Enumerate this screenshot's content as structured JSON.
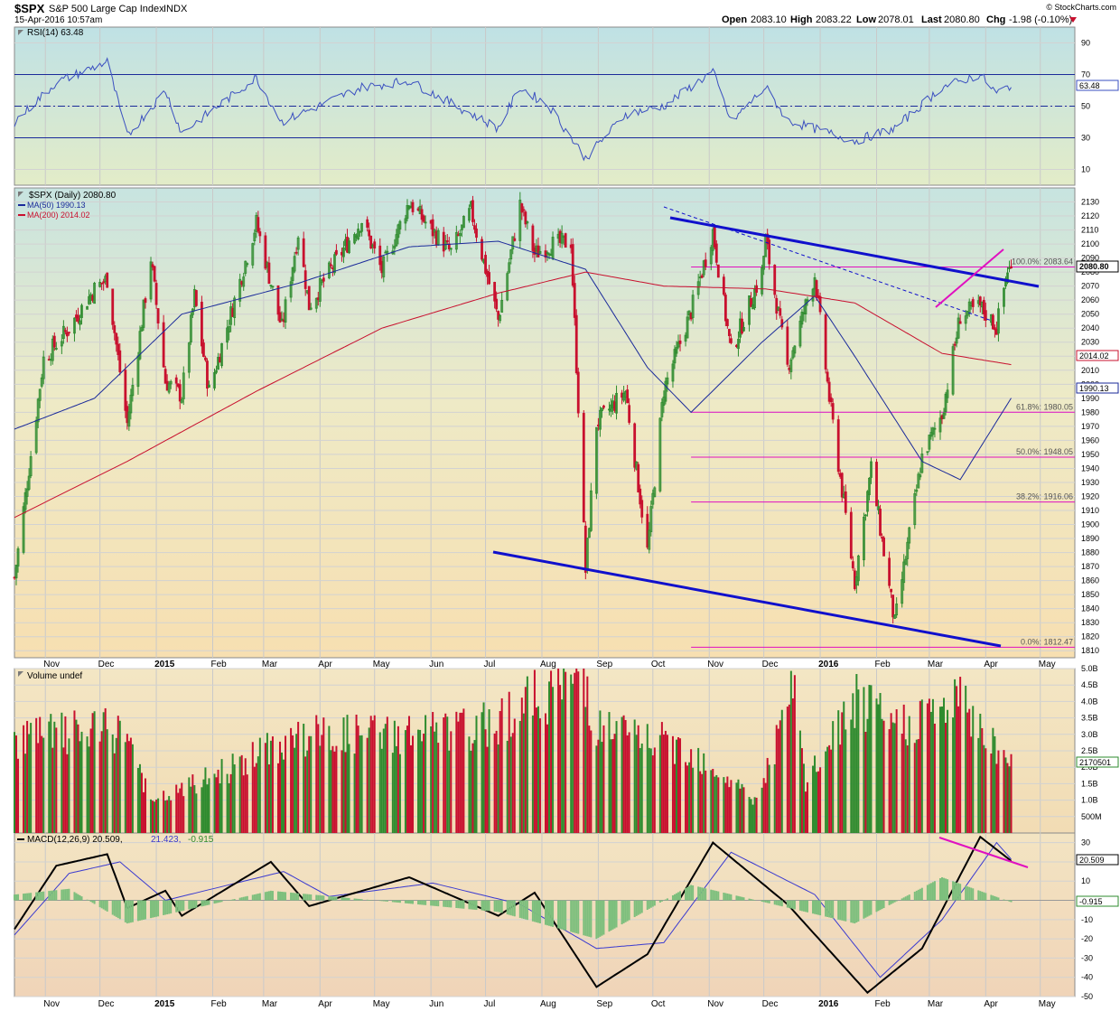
{
  "header": {
    "symbol": "$SPX",
    "name": "S&P 500 Large Cap Index",
    "exchange": "INDX",
    "date": "15-Apr-2016 10:57am",
    "copyright": "© StockCharts.com",
    "open_label": "Open",
    "open": "2083.10",
    "high_label": "High",
    "high": "2083.22",
    "low_label": "Low",
    "low": "2078.01",
    "last_label": "Last",
    "last": "2080.80",
    "chg_label": "Chg",
    "chg": "-1.98 (-0.10%)"
  },
  "colors": {
    "up": "#2e8b2e",
    "down": "#c8102e",
    "ma50": "#1a2a9a",
    "ma200": "#c8102e",
    "trend": "#1010cc",
    "fib": "#e010c0",
    "rsi": "#3a4fc0",
    "signal": "#3a3ad0"
  },
  "rsi_panel": {
    "label": "RSI(14) 63.48",
    "value": 63.48,
    "value_label": "63.48",
    "levels": [
      70,
      50,
      30
    ],
    "ylim": [
      0,
      100
    ],
    "ticks": [
      "90",
      "70",
      "50",
      "30",
      "10"
    ]
  },
  "price_panel": {
    "legend": {
      "symbol": "$SPX (Daily) 2080.80",
      "ma50": "MA(50) 1990.13",
      "ma200": "MA(200) 2014.02"
    },
    "last_label": "2080.80",
    "ma200_label": "2014.02",
    "ma50_label": "1990.13",
    "ylim": [
      1805,
      2140
    ],
    "ticks": [
      "2130",
      "2120",
      "2110",
      "2100",
      "2090",
      "2080",
      "2070",
      "2060",
      "2050",
      "2040",
      "2030",
      "2020",
      "2010",
      "2000",
      "1990",
      "1980",
      "1970",
      "1960",
      "1950",
      "1940",
      "1930",
      "1920",
      "1910",
      "1900",
      "1890",
      "1880",
      "1870",
      "1860",
      "1850",
      "1840",
      "1830",
      "1820",
      "1810"
    ],
    "fib_levels": [
      {
        "label": "100.0%: 2083.64",
        "value": 2083.64
      },
      {
        "label": "61.8%: 1980.05",
        "value": 1980.05
      },
      {
        "label": "50.0%: 1948.05",
        "value": 1948.05
      },
      {
        "label": "38.2%: 1916.06",
        "value": 1916.06
      },
      {
        "label": "0.0%: 1812.47",
        "value": 1812.47
      }
    ]
  },
  "volume_panel": {
    "label": "Volume undef",
    "value_label": "2170501",
    "ylim": [
      0,
      5000000000
    ],
    "ticks": [
      "5.0B",
      "4.5B",
      "4.0B",
      "3.5B",
      "3.0B",
      "2.5B",
      "2.0B",
      "1.5B",
      "1.0B",
      "500M"
    ]
  },
  "macd_panel": {
    "label_main": "MACD(12,26,9) 20.509,",
    "label_signal": "21.423,",
    "label_hist": "-0.915",
    "macd_label": "20.509",
    "hist_label": "-0.915",
    "ylim": [
      -50,
      35
    ],
    "ticks": [
      "30",
      "20",
      "10",
      "0",
      "-10",
      "-20",
      "-30",
      "-40",
      "-50"
    ]
  },
  "x_axis": {
    "labels": [
      "Nov",
      "Dec",
      "2015",
      "Feb",
      "Mar",
      "Apr",
      "May",
      "Jun",
      "Jul",
      "Aug",
      "Sep",
      "Oct",
      "Nov",
      "Dec",
      "2016",
      "Feb",
      "Mar",
      "Apr",
      "May"
    ]
  },
  "chart_data": {
    "type": "line",
    "title": "$SPX S&P 500 Large Cap Index INDX",
    "x_range": [
      "2014-10-15",
      "2016-04-15"
    ],
    "series": [
      {
        "name": "$SPX (Daily)",
        "points": [
          [
            "2014-10-15",
            1862
          ],
          [
            "2014-10-22",
            1930
          ],
          [
            "2014-10-31",
            2018
          ],
          [
            "2014-11-14",
            2040
          ],
          [
            "2014-11-28",
            2068
          ],
          [
            "2014-12-05",
            2075
          ],
          [
            "2014-12-16",
            1972
          ],
          [
            "2014-12-29",
            2090
          ],
          [
            "2015-01-06",
            2002
          ],
          [
            "2015-01-15",
            1992
          ],
          [
            "2015-01-22",
            2063
          ],
          [
            "2015-01-30",
            1995
          ],
          [
            "2015-02-25",
            2115
          ],
          [
            "2015-03-11",
            2040
          ],
          [
            "2015-03-20",
            2108
          ],
          [
            "2015-03-26",
            2056
          ],
          [
            "2015-04-06",
            2080
          ],
          [
            "2015-04-24",
            2117
          ],
          [
            "2015-05-05",
            2081
          ],
          [
            "2015-05-20",
            2130
          ],
          [
            "2015-06-02",
            2109
          ],
          [
            "2015-06-12",
            2094
          ],
          [
            "2015-06-23",
            2124
          ],
          [
            "2015-07-08",
            2046
          ],
          [
            "2015-07-20",
            2128
          ],
          [
            "2015-07-28",
            2093
          ],
          [
            "2015-08-05",
            2099
          ],
          [
            "2015-08-17",
            2102
          ],
          [
            "2015-08-25",
            1867
          ],
          [
            "2015-08-31",
            1972
          ],
          [
            "2015-09-16",
            1995
          ],
          [
            "2015-09-28",
            1881
          ],
          [
            "2015-10-07",
            1996
          ],
          [
            "2015-10-22",
            2052
          ],
          [
            "2015-11-03",
            2109
          ],
          [
            "2015-11-13",
            2023
          ],
          [
            "2015-11-30",
            2080
          ],
          [
            "2015-12-02",
            2103
          ],
          [
            "2015-12-14",
            2012
          ],
          [
            "2015-12-29",
            2078
          ],
          [
            "2016-01-06",
            1990
          ],
          [
            "2016-01-20",
            1859
          ],
          [
            "2016-01-29",
            1940
          ],
          [
            "2016-02-11",
            1829
          ],
          [
            "2016-02-26",
            1948
          ],
          [
            "2016-03-08",
            1979
          ],
          [
            "2016-03-18",
            2049
          ],
          [
            "2016-03-29",
            2055
          ],
          [
            "2016-04-07",
            2041
          ],
          [
            "2016-04-13",
            2082
          ],
          [
            "2016-04-15",
            2080.8
          ]
        ]
      },
      {
        "name": "MA(50)",
        "points": [
          [
            "2014-10-15",
            1968
          ],
          [
            "2014-11-28",
            1990
          ],
          [
            "2015-01-15",
            2050
          ],
          [
            "2015-03-20",
            2072
          ],
          [
            "2015-05-20",
            2098
          ],
          [
            "2015-07-08",
            2102
          ],
          [
            "2015-08-25",
            2082
          ],
          [
            "2015-09-28",
            2012
          ],
          [
            "2015-10-22",
            1980
          ],
          [
            "2015-11-30",
            2030
          ],
          [
            "2015-12-29",
            2063
          ],
          [
            "2016-01-20",
            2020
          ],
          [
            "2016-02-26",
            1945
          ],
          [
            "2016-03-18",
            1932
          ],
          [
            "2016-04-15",
            1990.13
          ]
        ]
      },
      {
        "name": "MA(200)",
        "points": [
          [
            "2014-10-15",
            1905
          ],
          [
            "2014-12-16",
            1945
          ],
          [
            "2015-02-25",
            1995
          ],
          [
            "2015-05-05",
            2040
          ],
          [
            "2015-07-08",
            2065
          ],
          [
            "2015-08-25",
            2080
          ],
          [
            "2015-10-07",
            2070
          ],
          [
            "2015-12-02",
            2068
          ],
          [
            "2016-01-20",
            2058
          ],
          [
            "2016-03-08",
            2022
          ],
          [
            "2016-04-15",
            2014.02
          ]
        ]
      },
      {
        "name": "RSI(14)",
        "points": [
          [
            "2014-10-15",
            40
          ],
          [
            "2014-11-07",
            65
          ],
          [
            "2014-12-05",
            78
          ],
          [
            "2014-12-16",
            31
          ],
          [
            "2015-01-06",
            60
          ],
          [
            "2015-01-15",
            33
          ],
          [
            "2015-02-25",
            68
          ],
          [
            "2015-03-11",
            40
          ],
          [
            "2015-04-24",
            62
          ],
          [
            "2015-05-20",
            66
          ],
          [
            "2015-06-12",
            52
          ],
          [
            "2015-07-08",
            36
          ],
          [
            "2015-07-20",
            62
          ],
          [
            "2015-08-05",
            50
          ],
          [
            "2015-08-25",
            17
          ],
          [
            "2015-09-16",
            45
          ],
          [
            "2015-10-07",
            50
          ],
          [
            "2015-11-03",
            72
          ],
          [
            "2015-11-13",
            40
          ],
          [
            "2015-12-02",
            62
          ],
          [
            "2015-12-14",
            41
          ],
          [
            "2016-01-20",
            28
          ],
          [
            "2016-02-11",
            36
          ],
          [
            "2016-03-08",
            62
          ],
          [
            "2016-03-29",
            70
          ],
          [
            "2016-04-07",
            58
          ],
          [
            "2016-04-15",
            63.48
          ]
        ]
      },
      {
        "name": "Volume",
        "points": [
          [
            "2014-10-15",
            3000000000
          ],
          [
            "2014-12-16",
            3200000000
          ],
          [
            "2014-12-29",
            900000000
          ],
          [
            "2015-03-20",
            3000000000
          ],
          [
            "2015-06-26",
            3200000000
          ],
          [
            "2015-08-24",
            5000000000
          ],
          [
            "2015-08-31",
            3300000000
          ],
          [
            "2015-10-22",
            2600000000
          ],
          [
            "2015-11-27",
            1000000000
          ],
          [
            "2015-12-18",
            4500000000
          ],
          [
            "2015-12-24",
            1500000000
          ],
          [
            "2016-01-20",
            4100000000
          ],
          [
            "2016-02-11",
            3300000000
          ],
          [
            "2016-03-18",
            4100000000
          ],
          [
            "2016-04-15",
            2170501000
          ]
        ]
      },
      {
        "name": "MACD(12,26,9)",
        "points": [
          [
            "2014-10-15",
            -15
          ],
          [
            "2014-11-07",
            18
          ],
          [
            "2014-12-05",
            24
          ],
          [
            "2014-12-16",
            -4
          ],
          [
            "2015-01-06",
            5
          ],
          [
            "2015-01-15",
            -8
          ],
          [
            "2015-03-05",
            20
          ],
          [
            "2015-03-26",
            -3
          ],
          [
            "2015-05-20",
            12
          ],
          [
            "2015-07-08",
            -8
          ],
          [
            "2015-07-28",
            4
          ],
          [
            "2015-08-31",
            -45
          ],
          [
            "2015-09-28",
            -28
          ],
          [
            "2015-11-03",
            30
          ],
          [
            "2015-12-14",
            -2
          ],
          [
            "2016-01-27",
            -48
          ],
          [
            "2016-02-26",
            -25
          ],
          [
            "2016-03-29",
            33
          ],
          [
            "2016-04-15",
            20.509
          ]
        ]
      },
      {
        "name": "MACD Signal",
        "points": [
          [
            "2014-10-15",
            -18
          ],
          [
            "2014-11-14",
            14
          ],
          [
            "2014-12-12",
            20
          ],
          [
            "2015-01-06",
            0
          ],
          [
            "2015-03-12",
            15
          ],
          [
            "2015-04-06",
            2
          ],
          [
            "2015-06-02",
            9
          ],
          [
            "2015-07-20",
            -2
          ],
          [
            "2015-08-31",
            -25
          ],
          [
            "2015-10-07",
            -22
          ],
          [
            "2015-11-13",
            25
          ],
          [
            "2015-12-29",
            3
          ],
          [
            "2016-02-03",
            -40
          ],
          [
            "2016-03-08",
            -10
          ],
          [
            "2016-04-07",
            30
          ],
          [
            "2016-04-15",
            21.423
          ]
        ]
      },
      {
        "name": "MACD Histogram",
        "points": [
          [
            "2014-10-15",
            3
          ],
          [
            "2014-11-14",
            6
          ],
          [
            "2014-12-16",
            -12
          ],
          [
            "2015-03-05",
            5
          ],
          [
            "2015-07-08",
            -6
          ],
          [
            "2015-08-31",
            -20
          ],
          [
            "2015-10-22",
            8
          ],
          [
            "2016-01-20",
            -12
          ],
          [
            "2016-03-08",
            12
          ],
          [
            "2016-04-15",
            -0.915
          ]
        ]
      }
    ]
  }
}
